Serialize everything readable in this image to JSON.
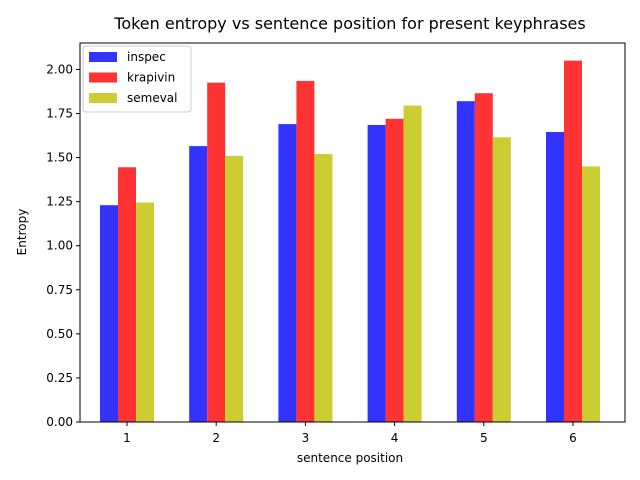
{
  "chart_data": {
    "type": "bar",
    "title": "Token entropy vs sentence position for present keyphrases",
    "xlabel": "sentence position",
    "ylabel": "Entropy",
    "categories": [
      "1",
      "2",
      "3",
      "4",
      "5",
      "6"
    ],
    "ylim": [
      0,
      2.15
    ],
    "yticks": [
      0.0,
      0.25,
      0.5,
      0.75,
      1.0,
      1.25,
      1.5,
      1.75,
      2.0
    ],
    "ytick_labels": [
      "0.00",
      "0.25",
      "0.50",
      "0.75",
      "1.00",
      "1.25",
      "1.50",
      "1.75",
      "2.00"
    ],
    "grid": false,
    "legend_position": "top-left",
    "series": [
      {
        "name": "inspec",
        "color": "#3333ff",
        "values": [
          1.23,
          1.565,
          1.69,
          1.685,
          1.82,
          1.645
        ]
      },
      {
        "name": "krapivin",
        "color": "#ff3333",
        "values": [
          1.445,
          1.925,
          1.935,
          1.72,
          1.865,
          2.05
        ]
      },
      {
        "name": "semeval",
        "color": "#cccc33",
        "values": [
          1.245,
          1.51,
          1.52,
          1.795,
          1.615,
          1.45
        ]
      }
    ]
  }
}
